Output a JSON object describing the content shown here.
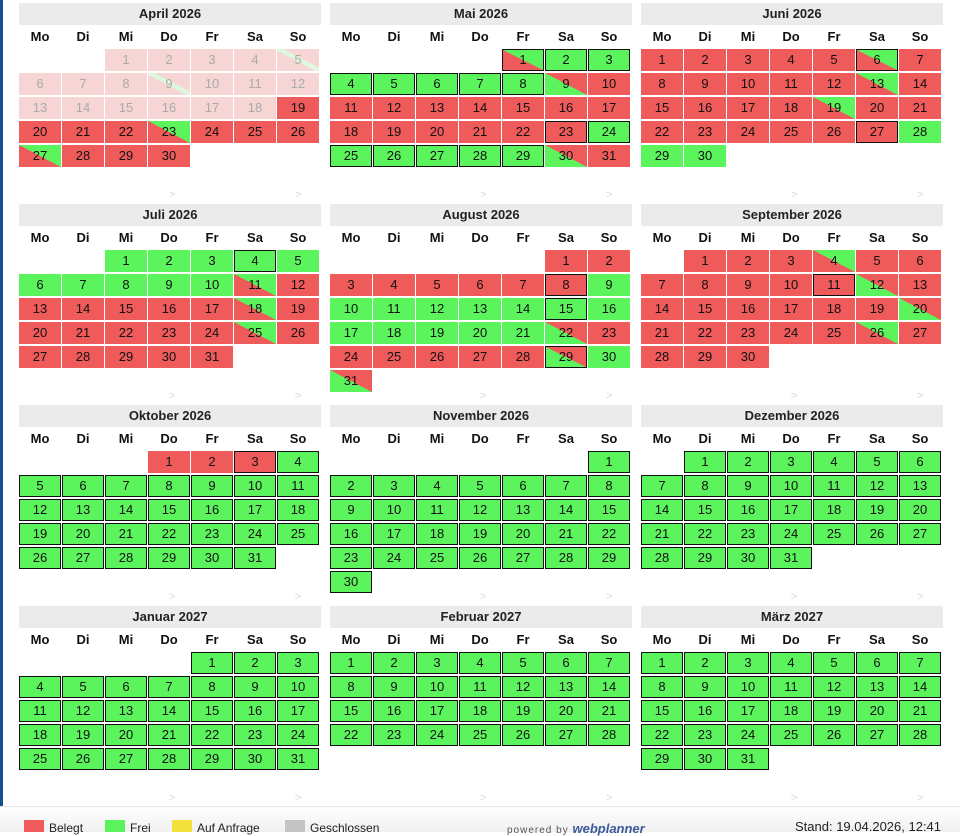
{
  "colors": {
    "belegt": "#ef5a5a",
    "frei": "#5cf45c",
    "anfrage": "#f2e13a",
    "geschlossen": "#c4c4c4",
    "past_belegt": "#f7d5d5",
    "past_frei": "#ddf8dd"
  },
  "weekdays": [
    "Mo",
    "Di",
    "Mi",
    "Do",
    "Fr",
    "Sa",
    "So"
  ],
  "nav": {
    "prev": ">",
    "next": ">"
  },
  "legend": {
    "belegt": "Belegt",
    "frei": "Frei",
    "anfrage": "Auf Anfrage",
    "geschlossen": "Geschlossen",
    "powered_by": "powered by",
    "brand": "webplanner",
    "stand": "Stand: 19.04.2026, 12:41"
  },
  "months": [
    {
      "title": "April 2026",
      "start": 2,
      "days": 30,
      "cells": [
        "PB",
        "PB",
        "PB",
        "PB",
        "PBF",
        "PB",
        "PB",
        "PB",
        "PBF",
        "PB",
        "PB",
        "PB",
        "PB",
        "PB",
        "PB",
        "PB",
        "PB",
        "PB",
        "B",
        "B",
        "B",
        "B",
        "BF",
        "B",
        "B",
        "B",
        "BF",
        "B",
        "B",
        "B"
      ]
    },
    {
      "title": "Mai 2026",
      "start": 4,
      "days": 31,
      "cells": [
        "BF*",
        "F*",
        "F*",
        "F*",
        "F*",
        "F*",
        "F*",
        "F*",
        "FB",
        "B",
        "B",
        "B",
        "B",
        "B",
        "B",
        "B",
        "B",
        "B",
        "B",
        "B",
        "B",
        "B",
        "B*",
        "F*",
        "F*",
        "F*",
        "F*",
        "F*",
        "F*",
        "FB",
        "B"
      ]
    },
    {
      "title": "Juni 2026",
      "start": 0,
      "days": 30,
      "cells": [
        "B",
        "B",
        "B",
        "B",
        "B",
        "BF*",
        "B",
        "B",
        "B",
        "B",
        "B",
        "B",
        "BF",
        "B",
        "B",
        "B",
        "B",
        "B",
        "BF",
        "B",
        "B",
        "B",
        "B",
        "B",
        "B",
        "B",
        "B*",
        "F",
        "F",
        "F"
      ]
    },
    {
      "title": "Juli 2026",
      "start": 2,
      "days": 31,
      "cells": [
        "F",
        "F",
        "F",
        "F*",
        "F",
        "F",
        "F",
        "F",
        "F",
        "F",
        "BF",
        "B",
        "B",
        "B",
        "B",
        "B",
        "B",
        "BF",
        "B",
        "B",
        "B",
        "B",
        "B",
        "B",
        "BF",
        "B",
        "B",
        "B",
        "B",
        "B",
        "B"
      ]
    },
    {
      "title": "August 2026",
      "start": 5,
      "days": 31,
      "cells": [
        "B",
        "B",
        "B",
        "B",
        "B",
        "B",
        "B",
        "B*",
        "F",
        "F",
        "F",
        "F",
        "F",
        "F",
        "F*",
        "F",
        "F",
        "F",
        "F",
        "F",
        "F",
        "FB",
        "B",
        "B",
        "B",
        "B",
        "B",
        "B",
        "FB*",
        "F",
        "FB"
      ]
    },
    {
      "title": "September 2026",
      "start": 1,
      "days": 30,
      "cells": [
        "B",
        "B",
        "B",
        "BF",
        "B",
        "B",
        "B",
        "B",
        "B",
        "B",
        "B*",
        "FB",
        "B",
        "B",
        "B",
        "B",
        "B",
        "B",
        "B",
        "FB",
        "B",
        "B",
        "B",
        "B",
        "B",
        "BF",
        "B",
        "B",
        "B",
        "B"
      ]
    },
    {
      "title": "Oktober 2026",
      "start": 3,
      "days": 31,
      "cells": [
        "B",
        "B",
        "B*",
        "F*",
        "F*",
        "F*",
        "F*",
        "F*",
        "F*",
        "F*",
        "F*",
        "F*",
        "F*",
        "F*",
        "F*",
        "F*",
        "F*",
        "F*",
        "F*",
        "F*",
        "F*",
        "F*",
        "F*",
        "F*",
        "F*",
        "F*",
        "F*",
        "F*",
        "F*",
        "F*",
        "F*"
      ]
    },
    {
      "title": "November 2026",
      "start": 6,
      "days": 30,
      "cells": [
        "F*",
        "F*",
        "F*",
        "F*",
        "F*",
        "F*",
        "F*",
        "F*",
        "F*",
        "F*",
        "F*",
        "F*",
        "F*",
        "F*",
        "F*",
        "F*",
        "F*",
        "F*",
        "F*",
        "F*",
        "F*",
        "F*",
        "F*",
        "F*",
        "F*",
        "F*",
        "F*",
        "F*",
        "F*",
        "F*"
      ]
    },
    {
      "title": "Dezember 2026",
      "start": 1,
      "days": 31,
      "cells": [
        "F*",
        "F*",
        "F*",
        "F*",
        "F*",
        "F*",
        "F*",
        "F*",
        "F*",
        "F*",
        "F*",
        "F*",
        "F*",
        "F*",
        "F*",
        "F*",
        "F*",
        "F*",
        "F*",
        "F*",
        "F*",
        "F*",
        "F*",
        "F*",
        "F*",
        "F*",
        "F*",
        "F*",
        "F*",
        "F*",
        "F*"
      ]
    },
    {
      "title": "Januar 2027",
      "start": 4,
      "days": 31,
      "cells": [
        "F*",
        "F*",
        "F*",
        "F*",
        "F*",
        "F*",
        "F*",
        "F*",
        "F*",
        "F*",
        "F*",
        "F*",
        "F*",
        "F*",
        "F*",
        "F*",
        "F*",
        "F*",
        "F*",
        "F*",
        "F*",
        "F*",
        "F*",
        "F*",
        "F*",
        "F*",
        "F*",
        "F*",
        "F*",
        "F*",
        "F*"
      ]
    },
    {
      "title": "Februar 2027",
      "start": 0,
      "days": 28,
      "cells": [
        "F*",
        "F*",
        "F*",
        "F*",
        "F*",
        "F*",
        "F*",
        "F*",
        "F*",
        "F*",
        "F*",
        "F*",
        "F*",
        "F*",
        "F*",
        "F*",
        "F*",
        "F*",
        "F*",
        "F*",
        "F*",
        "F*",
        "F*",
        "F*",
        "F*",
        "F*",
        "F*",
        "F*"
      ]
    },
    {
      "title": "März 2027",
      "start": 0,
      "days": 31,
      "cells": [
        "F*",
        "F*",
        "F*",
        "F*",
        "F*",
        "F*",
        "F*",
        "F*",
        "F*",
        "F*",
        "F*",
        "F*",
        "F*",
        "F*",
        "F*",
        "F*",
        "F*",
        "F*",
        "F*",
        "F*",
        "F*",
        "F*",
        "F*",
        "F*",
        "F*",
        "F*",
        "F*",
        "F*",
        "F*",
        "F*",
        "F*"
      ]
    }
  ]
}
